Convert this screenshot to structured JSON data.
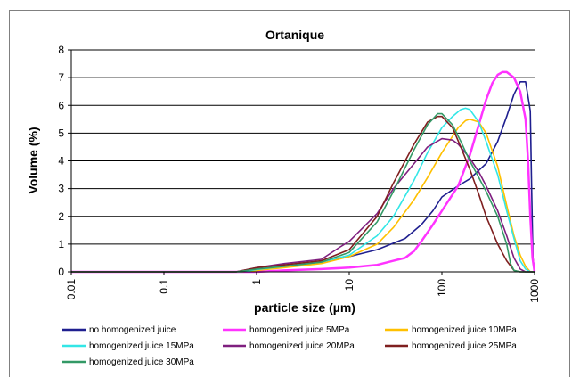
{
  "chart_data": {
    "type": "line",
    "title": "Ortanique",
    "xlabel": "particle size (µm)",
    "ylabel": "Volume (%)",
    "x_scale": "log",
    "xlim": [
      0.01,
      1000
    ],
    "ylim": [
      0,
      8
    ],
    "x_ticks": [
      "0.01",
      "0.1",
      "1",
      "10",
      "100",
      "1000"
    ],
    "y_ticks": [
      "0",
      "1",
      "2",
      "3",
      "4",
      "5",
      "6",
      "7",
      "8"
    ],
    "grid": "horizontal",
    "legend_position": "bottom",
    "series": [
      {
        "name": "no homogenized juice",
        "color": "#1f1f8f",
        "points": [
          [
            0.01,
            0
          ],
          [
            0.6,
            0
          ],
          [
            0.8,
            0.05
          ],
          [
            1,
            0.1
          ],
          [
            2,
            0.2
          ],
          [
            5,
            0.35
          ],
          [
            10,
            0.55
          ],
          [
            20,
            0.8
          ],
          [
            40,
            1.2
          ],
          [
            60,
            1.7
          ],
          [
            80,
            2.2
          ],
          [
            100,
            2.7
          ],
          [
            150,
            3.1
          ],
          [
            200,
            3.35
          ],
          [
            300,
            3.9
          ],
          [
            400,
            4.7
          ],
          [
            500,
            5.6
          ],
          [
            600,
            6.4
          ],
          [
            700,
            6.85
          ],
          [
            800,
            6.85
          ],
          [
            850,
            6.3
          ],
          [
            900,
            5.8
          ],
          [
            930,
            3.0
          ],
          [
            960,
            0.5
          ],
          [
            1000,
            0
          ]
        ]
      },
      {
        "name": "homogenized juice 5MPa",
        "color": "#ff33ff",
        "points": [
          [
            0.01,
            0
          ],
          [
            1,
            0
          ],
          [
            2,
            0.05
          ],
          [
            5,
            0.1
          ],
          [
            10,
            0.15
          ],
          [
            20,
            0.25
          ],
          [
            30,
            0.4
          ],
          [
            40,
            0.5
          ],
          [
            50,
            0.75
          ],
          [
            60,
            1.1
          ],
          [
            80,
            1.7
          ],
          [
            100,
            2.2
          ],
          [
            150,
            3.1
          ],
          [
            200,
            4.2
          ],
          [
            250,
            5.3
          ],
          [
            300,
            6.2
          ],
          [
            350,
            6.8
          ],
          [
            400,
            7.1
          ],
          [
            450,
            7.2
          ],
          [
            500,
            7.2
          ],
          [
            600,
            7.0
          ],
          [
            700,
            6.5
          ],
          [
            800,
            5.5
          ],
          [
            850,
            4.0
          ],
          [
            900,
            2.0
          ],
          [
            950,
            0.5
          ],
          [
            1000,
            0
          ]
        ]
      },
      {
        "name": "homogenized juice 10MPa",
        "color": "#ffc000",
        "points": [
          [
            0.01,
            0
          ],
          [
            0.7,
            0
          ],
          [
            1,
            0.05
          ],
          [
            2,
            0.15
          ],
          [
            5,
            0.3
          ],
          [
            10,
            0.55
          ],
          [
            20,
            1.0
          ],
          [
            30,
            1.6
          ],
          [
            50,
            2.6
          ],
          [
            70,
            3.4
          ],
          [
            100,
            4.3
          ],
          [
            150,
            5.2
          ],
          [
            180,
            5.45
          ],
          [
            200,
            5.5
          ],
          [
            250,
            5.4
          ],
          [
            300,
            5.0
          ],
          [
            400,
            3.8
          ],
          [
            500,
            2.4
          ],
          [
            600,
            1.3
          ],
          [
            700,
            0.6
          ],
          [
            800,
            0.2
          ],
          [
            900,
            0
          ],
          [
            1000,
            0
          ]
        ]
      },
      {
        "name": "homogenized juice 15MPa",
        "color": "#33e6e6",
        "points": [
          [
            0.01,
            0
          ],
          [
            0.7,
            0
          ],
          [
            1,
            0.08
          ],
          [
            2,
            0.2
          ],
          [
            5,
            0.35
          ],
          [
            10,
            0.6
          ],
          [
            20,
            1.3
          ],
          [
            30,
            2.0
          ],
          [
            50,
            3.3
          ],
          [
            70,
            4.3
          ],
          [
            100,
            5.2
          ],
          [
            130,
            5.6
          ],
          [
            160,
            5.85
          ],
          [
            180,
            5.9
          ],
          [
            200,
            5.85
          ],
          [
            250,
            5.4
          ],
          [
            300,
            4.7
          ],
          [
            400,
            3.5
          ],
          [
            500,
            2.2
          ],
          [
            600,
            1.2
          ],
          [
            700,
            0.4
          ],
          [
            800,
            0.1
          ],
          [
            900,
            0
          ],
          [
            1000,
            0
          ]
        ]
      },
      {
        "name": "homogenized juice 20MPa",
        "color": "#7f1f7f",
        "points": [
          [
            0.01,
            0
          ],
          [
            0.6,
            0
          ],
          [
            1,
            0.15
          ],
          [
            2,
            0.3
          ],
          [
            5,
            0.45
          ],
          [
            8,
            0.9
          ],
          [
            10,
            1.1
          ],
          [
            20,
            2.1
          ],
          [
            30,
            3.0
          ],
          [
            50,
            3.9
          ],
          [
            70,
            4.5
          ],
          [
            100,
            4.8
          ],
          [
            130,
            4.75
          ],
          [
            150,
            4.6
          ],
          [
            200,
            4.1
          ],
          [
            250,
            3.6
          ],
          [
            300,
            3.1
          ],
          [
            400,
            2.2
          ],
          [
            500,
            1.3
          ],
          [
            600,
            0.5
          ],
          [
            700,
            0.1
          ],
          [
            800,
            0
          ],
          [
            1000,
            0
          ]
        ]
      },
      {
        "name": "homogenized juice 25MPa",
        "color": "#7f1f1f",
        "points": [
          [
            0.01,
            0
          ],
          [
            0.6,
            0
          ],
          [
            1,
            0.15
          ],
          [
            2,
            0.25
          ],
          [
            5,
            0.4
          ],
          [
            10,
            0.8
          ],
          [
            20,
            2.0
          ],
          [
            30,
            3.2
          ],
          [
            50,
            4.6
          ],
          [
            70,
            5.4
          ],
          [
            90,
            5.6
          ],
          [
            100,
            5.6
          ],
          [
            130,
            5.2
          ],
          [
            160,
            4.5
          ],
          [
            200,
            3.7
          ],
          [
            250,
            2.8
          ],
          [
            300,
            2.0
          ],
          [
            400,
            1.0
          ],
          [
            500,
            0.4
          ],
          [
            600,
            0.05
          ],
          [
            700,
            0
          ],
          [
            1000,
            0
          ]
        ]
      },
      {
        "name": "homogenized juice 30MPa",
        "color": "#339966",
        "points": [
          [
            0.01,
            0
          ],
          [
            0.6,
            0
          ],
          [
            1,
            0.1
          ],
          [
            2,
            0.2
          ],
          [
            5,
            0.35
          ],
          [
            10,
            0.7
          ],
          [
            20,
            1.8
          ],
          [
            30,
            2.9
          ],
          [
            50,
            4.4
          ],
          [
            70,
            5.3
          ],
          [
            90,
            5.7
          ],
          [
            100,
            5.7
          ],
          [
            130,
            5.3
          ],
          [
            160,
            4.7
          ],
          [
            200,
            4.0
          ],
          [
            250,
            3.4
          ],
          [
            300,
            2.9
          ],
          [
            400,
            2.0
          ],
          [
            500,
            1.0
          ],
          [
            550,
            0.3
          ],
          [
            600,
            0.05
          ],
          [
            700,
            0
          ],
          [
            1000,
            0
          ]
        ]
      }
    ]
  }
}
